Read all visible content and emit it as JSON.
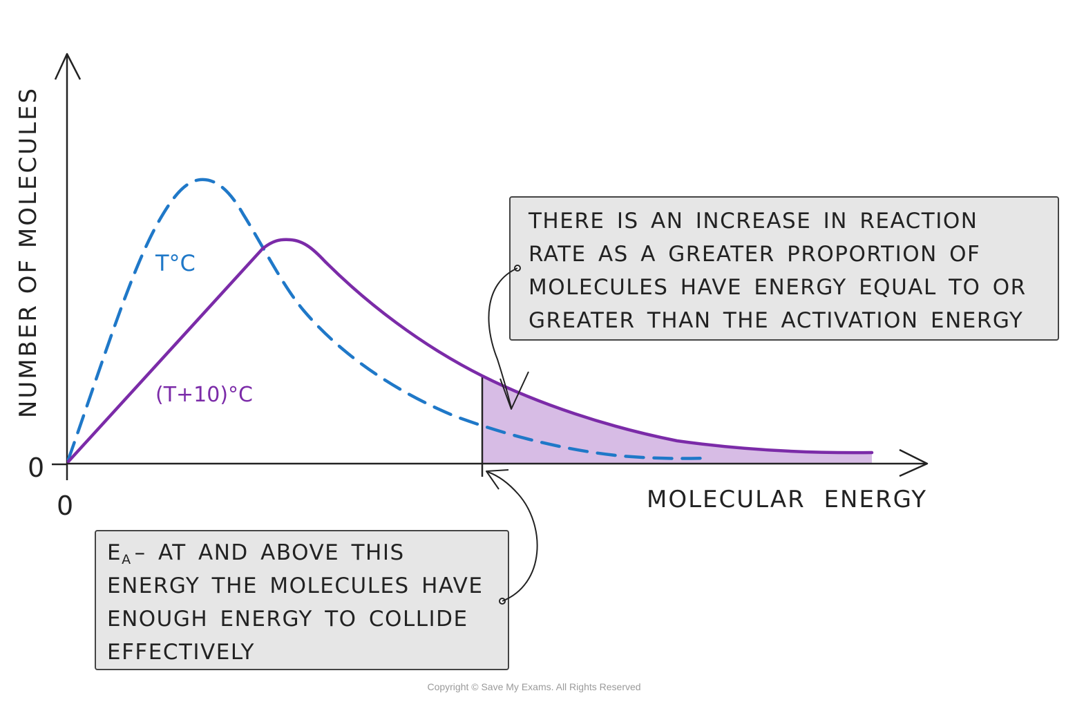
{
  "chart_data": {
    "type": "line",
    "title": "",
    "xlabel": "MOLECULAR ENERGY",
    "ylabel": "NUMBER OF MOLECULES",
    "x_tick_labels": [
      "0"
    ],
    "y_tick_labels": [
      "0"
    ],
    "series": [
      {
        "name": "T°C",
        "style": "dashed",
        "color": "#1f78c8"
      },
      {
        "name": "(T+10)°C",
        "style": "solid",
        "color": "#7b2ba8"
      }
    ],
    "shaded_region": {
      "label": "Eₐ",
      "color": "#c9a6dc"
    },
    "grid": false,
    "legend": "none"
  },
  "annotations": {
    "increase_box": {
      "lines": [
        "THERE IS AN INCREASE IN REACTION",
        "RATE AS A GREATER PROPORTION OF",
        "MOLECULES HAVE ENERGY EQUAL TO OR",
        "GREATER THAN THE ACTIVATION ENERGY"
      ]
    },
    "ea_box": {
      "symbol": "E",
      "subscript": "A",
      "lines": [
        "– AT AND ABOVE THIS",
        "ENERGY THE MOLECULES HAVE",
        "ENOUGH ENERGY TO COLLIDE",
        "EFFECTIVELY"
      ]
    }
  },
  "footer": {
    "copyright": "Copyright © Save My Exams. All Rights Reserved"
  },
  "colors": {
    "axis": "#222222",
    "box_fill": "#e6e6e6",
    "box_stroke": "#444444"
  }
}
